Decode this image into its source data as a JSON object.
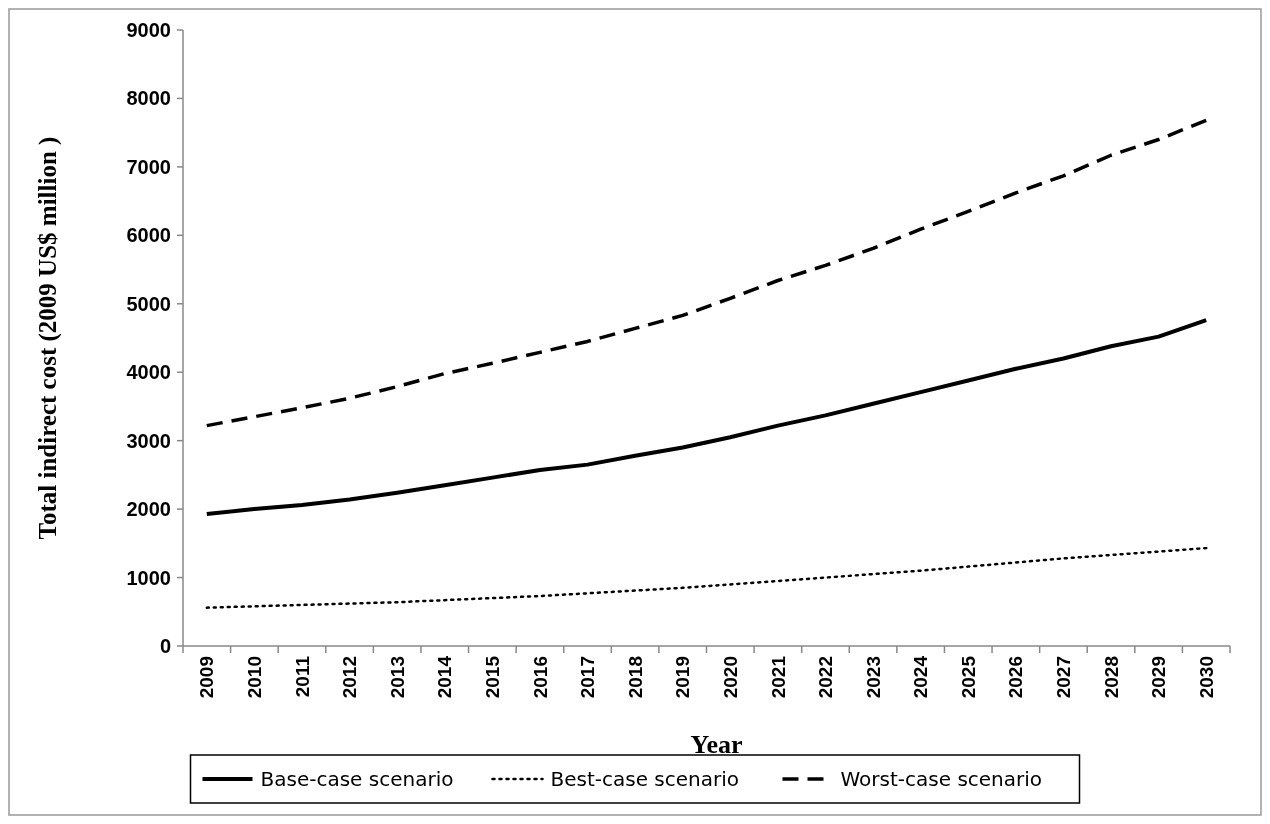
{
  "chart_data": {
    "type": "line",
    "xlabel": "Year",
    "ylabel": "Total indirect cost (2009 US$ million )",
    "categories": [
      "2009",
      "2010",
      "2011",
      "2012",
      "2013",
      "2014",
      "2015",
      "2016",
      "2017",
      "2018",
      "2019",
      "2020",
      "2021",
      "2022",
      "2023",
      "2024",
      "2025",
      "2026",
      "2027",
      "2028",
      "2029",
      "2030"
    ],
    "series": [
      {
        "name": "Base-case scenario",
        "color": "#000000",
        "line_style": "solid",
        "values": [
          1930,
          2000,
          2060,
          2140,
          2240,
          2350,
          2460,
          2570,
          2650,
          2780,
          2900,
          3050,
          3220,
          3370,
          3540,
          3710,
          3880,
          4050,
          4200,
          4380,
          4520,
          4760
        ]
      },
      {
        "name": "Best-case scenario",
        "color": "#000000",
        "line_style": "dotted",
        "values": [
          560,
          580,
          600,
          620,
          640,
          670,
          700,
          730,
          770,
          810,
          850,
          900,
          950,
          1000,
          1050,
          1100,
          1160,
          1220,
          1280,
          1330,
          1380,
          1430
        ]
      },
      {
        "name": "Worst-case scenario",
        "color": "#000000",
        "line_style": "dashed",
        "values": [
          3220,
          3350,
          3480,
          3620,
          3790,
          3980,
          4130,
          4290,
          4450,
          4640,
          4830,
          5080,
          5340,
          5560,
          5810,
          6090,
          6350,
          6620,
          6870,
          7170,
          7400,
          7680
        ]
      }
    ],
    "ylim": [
      0,
      9000
    ],
    "yticks": [
      0,
      1000,
      2000,
      3000,
      4000,
      5000,
      6000,
      7000,
      8000,
      9000
    ],
    "grid": false,
    "legend": "bottom",
    "marker": "none"
  }
}
